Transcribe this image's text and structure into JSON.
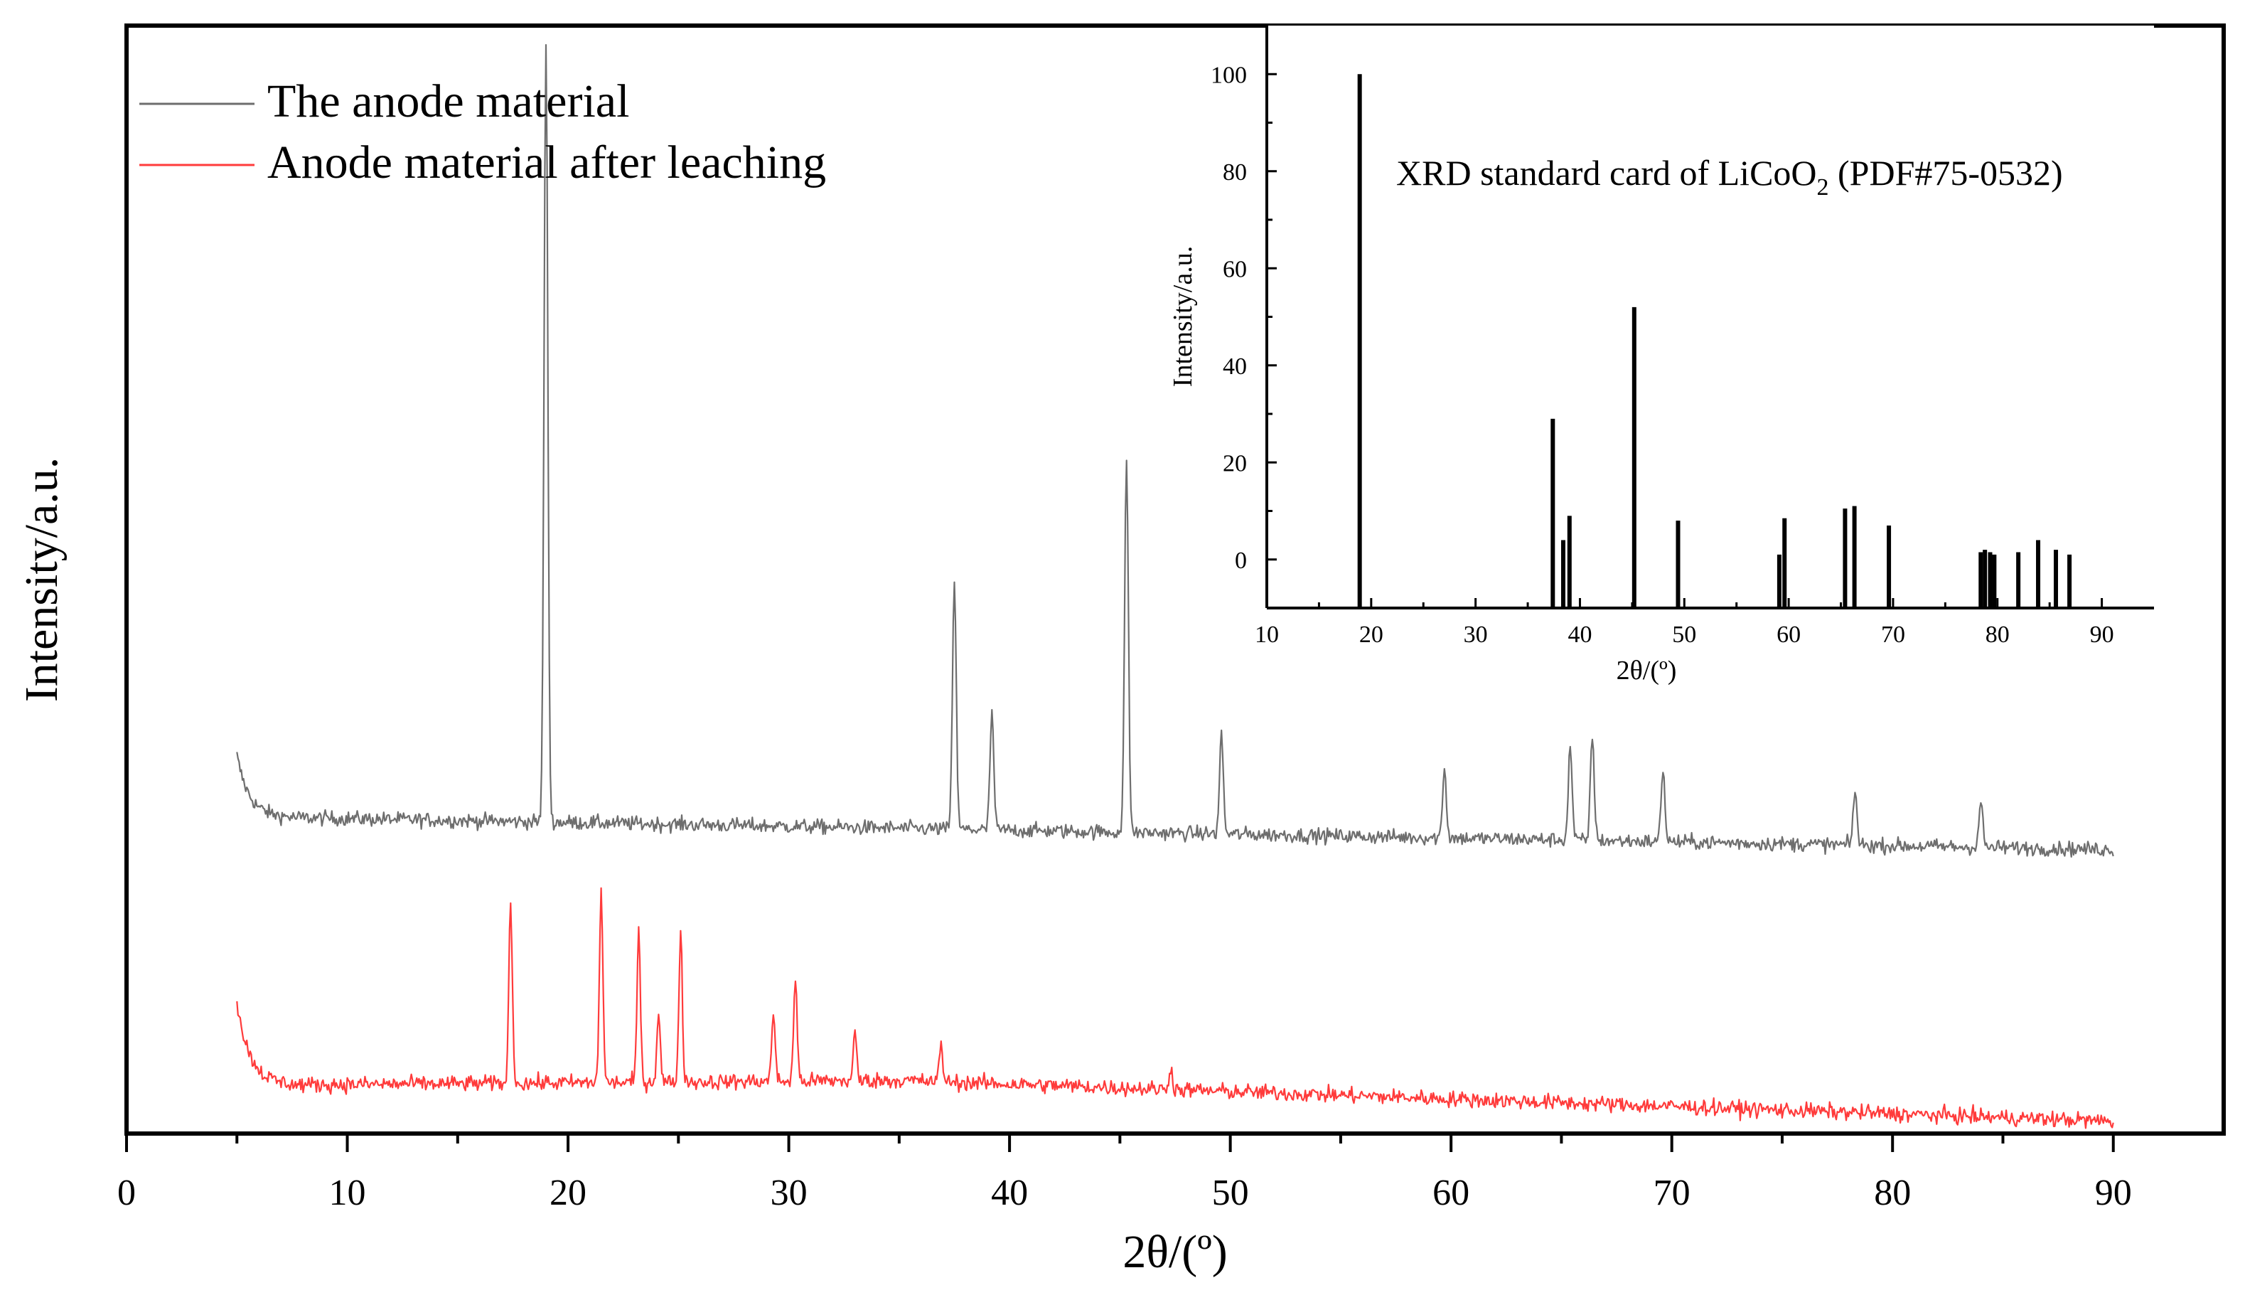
{
  "chart_data": [
    {
      "type": "line",
      "title": "",
      "xlabel": "2θ/(º)",
      "ylabel": "Intensity/a.u.",
      "xlim": [
        0,
        95
      ],
      "ylim": [
        0,
        100
      ],
      "x_ticks": [
        "0",
        "10",
        "20",
        "30",
        "40",
        "50",
        "60",
        "70",
        "80",
        "90"
      ],
      "y_ticks": [],
      "legend_position": "top-left",
      "series": [
        {
          "name": "The anode material",
          "color": "#6e6e6e",
          "x_range": [
            5,
            90
          ],
          "peaks": [
            {
              "x": 19.0,
              "y": 98
            },
            {
              "x": 37.5,
              "y": 50
            },
            {
              "x": 39.2,
              "y": 38
            },
            {
              "x": 45.3,
              "y": 61
            },
            {
              "x": 49.6,
              "y": 36
            },
            {
              "x": 59.7,
              "y": 33
            },
            {
              "x": 65.4,
              "y": 35
            },
            {
              "x": 66.4,
              "y": 36
            },
            {
              "x": 69.6,
              "y": 33
            },
            {
              "x": 78.3,
              "y": 31
            },
            {
              "x": 84.0,
              "y": 30
            }
          ]
        },
        {
          "name": "Anode material after leaching",
          "color": "#ff3b3b",
          "x_range": [
            5,
            90
          ],
          "peaks": [
            {
              "x": 17.4,
              "y": 21
            },
            {
              "x": 21.5,
              "y": 22
            },
            {
              "x": 23.2,
              "y": 18
            },
            {
              "x": 24.1,
              "y": 11
            },
            {
              "x": 25.1,
              "y": 18
            },
            {
              "x": 29.3,
              "y": 11
            },
            {
              "x": 30.3,
              "y": 14
            },
            {
              "x": 33.0,
              "y": 9
            },
            {
              "x": 36.9,
              "y": 8
            },
            {
              "x": 47.3,
              "y": 6
            }
          ]
        }
      ]
    },
    {
      "type": "bar",
      "title": "XRD standard card of LiCoO",
      "title_subscript": "2",
      "title_suffix": " (PDF#75-0532)",
      "xlabel": "2θ/(º)",
      "ylabel": "Intensity/a.u.",
      "xlim": [
        10,
        95
      ],
      "ylim": [
        -10,
        110
      ],
      "x_ticks": [
        "10",
        "20",
        "30",
        "40",
        "50",
        "60",
        "70",
        "80",
        "90"
      ],
      "y_ticks": [
        "0",
        "20",
        "40",
        "60",
        "80",
        "100"
      ],
      "color": "#000000",
      "x": [
        18.9,
        37.4,
        38.4,
        39.0,
        45.2,
        49.4,
        59.1,
        59.6,
        65.4,
        66.3,
        69.6,
        78.4,
        78.8,
        79.3,
        79.7,
        82.0,
        83.9,
        85.6,
        86.9
      ],
      "values": [
        100,
        29,
        4,
        9,
        52,
        8,
        1,
        8.5,
        10.5,
        11,
        7,
        1.5,
        2,
        1.5,
        1,
        1.5,
        4,
        2,
        1
      ]
    }
  ]
}
